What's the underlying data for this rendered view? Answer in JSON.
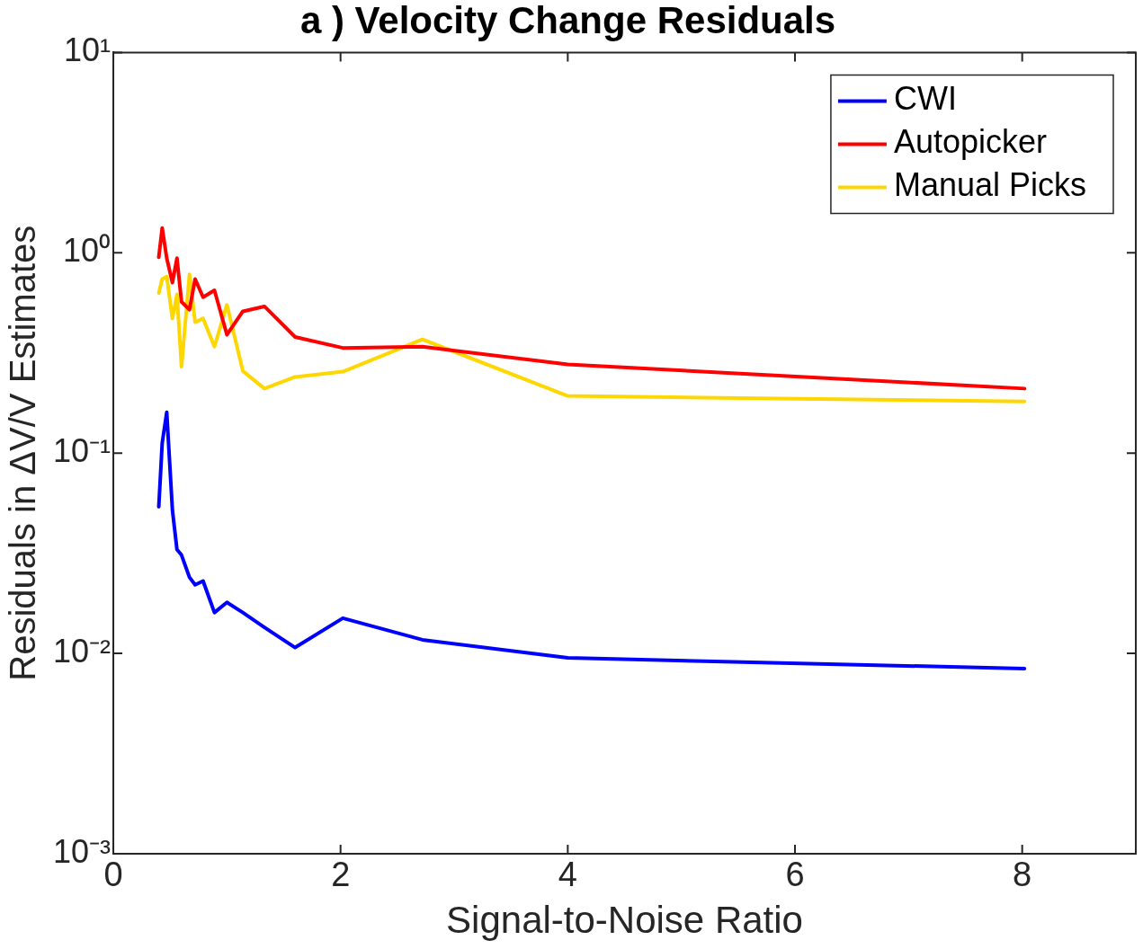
{
  "chart_data": {
    "type": "line",
    "title": "a ) Velocity Change Residuals",
    "xlabel": "Signal-to-Noise Ratio",
    "ylabel": "Residuals in ΔV/V Estimates",
    "x": [
      0.4,
      0.43,
      0.47,
      0.52,
      0.56,
      0.6,
      0.67,
      0.72,
      0.79,
      0.89,
      1.0,
      1.14,
      1.33,
      1.6,
      2.02,
      2.72,
      4.0,
      8.02
    ],
    "series": [
      {
        "name": "CWI",
        "color": "#0000ff",
        "values": [
          0.054,
          0.112,
          0.16,
          0.052,
          0.033,
          0.031,
          0.024,
          0.022,
          0.023,
          0.016,
          0.018,
          0.016,
          0.0135,
          0.0107,
          0.015,
          0.0117,
          0.0095,
          0.0084
        ]
      },
      {
        "name": "Autopicker",
        "color": "#ff0000",
        "values": [
          0.95,
          1.33,
          0.94,
          0.71,
          0.94,
          0.57,
          0.52,
          0.74,
          0.6,
          0.65,
          0.39,
          0.51,
          0.54,
          0.38,
          0.335,
          0.34,
          0.277,
          0.21
        ]
      },
      {
        "name": "Manual Picks",
        "color": "#ffd700",
        "values": [
          0.63,
          0.74,
          0.76,
          0.47,
          0.62,
          0.27,
          0.78,
          0.45,
          0.47,
          0.34,
          0.55,
          0.257,
          0.21,
          0.24,
          0.255,
          0.37,
          0.193,
          0.181
        ]
      }
    ],
    "log": "y",
    "xlim": [
      0,
      9
    ],
    "xticks": [
      0,
      2,
      4,
      6,
      8
    ],
    "ylim": [
      0.001,
      10
    ],
    "yticks": [
      {
        "value": 0.001,
        "label": "10⁻³"
      },
      {
        "value": 0.01,
        "label": "10⁻²"
      },
      {
        "value": 0.1,
        "label": "10⁻¹"
      },
      {
        "value": 1,
        "label": "10⁰"
      },
      {
        "value": 10,
        "label": "10¹"
      }
    ],
    "grid": false,
    "legend": "top right",
    "line_style": "solid",
    "marker": "none"
  }
}
